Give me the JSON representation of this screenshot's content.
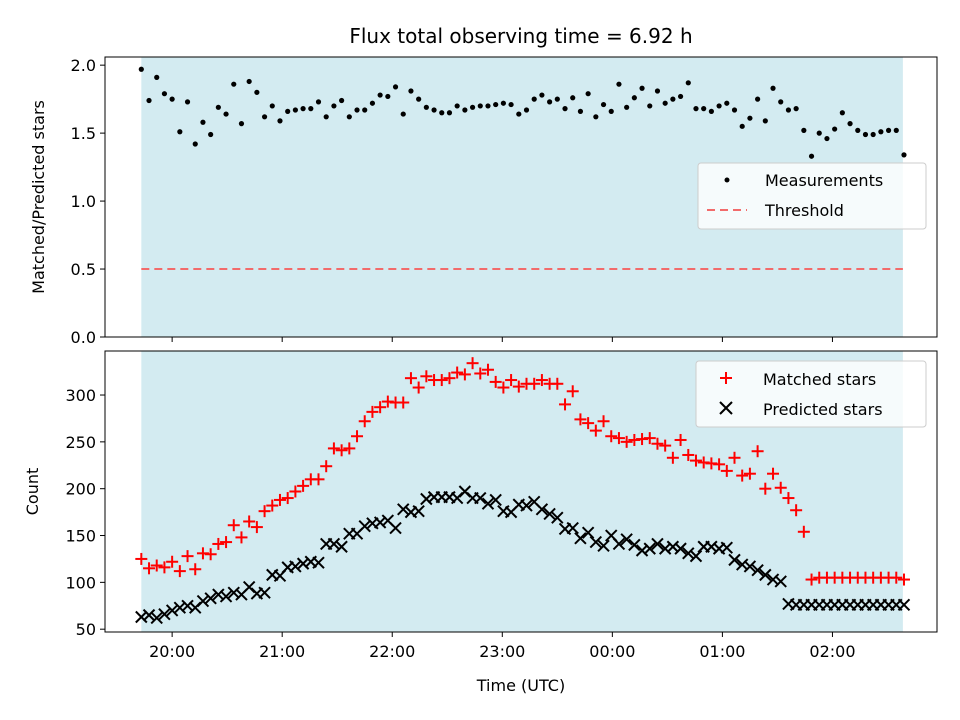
{
  "chart_data": {
    "title": "Flux total observing time = 6.92 h",
    "xlabel": "Time (UTC)",
    "x_unit": "hours (UTC clock; values after 24:00 continue past midnight)",
    "x_range": [
      19.39,
      26.95
    ],
    "shaded_interval": [
      19.72,
      26.64
    ],
    "shade_color": "#d3ebf1",
    "xticks": [
      {
        "value": 20,
        "label": "20:00"
      },
      {
        "value": 21,
        "label": "21:00"
      },
      {
        "value": 22,
        "label": "22:00"
      },
      {
        "value": 23,
        "label": "23:00"
      },
      {
        "value": 24,
        "label": "00:00"
      },
      {
        "value": 25,
        "label": "01:00"
      },
      {
        "value": 26,
        "label": "02:00"
      }
    ],
    "panels": [
      {
        "type": "scatter",
        "ylabel": "Matched/Predicted stars",
        "ylim": [
          0,
          2.06
        ],
        "yticks": [
          {
            "value": 0.0,
            "label": "0.0"
          },
          {
            "value": 0.5,
            "label": "0.5"
          },
          {
            "value": 1.0,
            "label": "1.0"
          },
          {
            "value": 1.5,
            "label": "1.5"
          },
          {
            "value": 2.0,
            "label": "2.0"
          }
        ],
        "legend_placement": "center-right",
        "threshold": {
          "name": "Threshold",
          "value": 0.5,
          "x_start": 19.72,
          "x_end": 26.64,
          "color": "#f26b6b"
        },
        "series": [
          {
            "name": "Measurements",
            "marker": "dot",
            "color": "#000000",
            "x": [
              19.72,
              19.79,
              19.86,
              19.93,
              20.0,
              20.07,
              20.14,
              20.21,
              20.28,
              20.35,
              20.42,
              20.49,
              20.56,
              20.63,
              20.7,
              20.77,
              20.84,
              20.91,
              20.98,
              21.05,
              21.12,
              21.19,
              21.26,
              21.33,
              21.4,
              21.47,
              21.54,
              21.61,
              21.68,
              21.75,
              21.82,
              21.89,
              21.96,
              22.03,
              22.1,
              22.17,
              22.24,
              22.31,
              22.38,
              22.45,
              22.52,
              22.59,
              22.66,
              22.73,
              22.8,
              22.87,
              22.94,
              23.01,
              23.08,
              23.15,
              23.22,
              23.29,
              23.36,
              23.43,
              23.5,
              23.57,
              23.64,
              23.71,
              23.78,
              23.85,
              23.92,
              23.99,
              24.06,
              24.13,
              24.2,
              24.27,
              24.34,
              24.41,
              24.48,
              24.55,
              24.62,
              24.69,
              24.76,
              24.83,
              24.9,
              24.97,
              25.04,
              25.11,
              25.18,
              25.25,
              25.32,
              25.39,
              25.46,
              25.53,
              25.6,
              25.67,
              25.74,
              25.81,
              25.88,
              25.95,
              26.02,
              26.09,
              26.16,
              26.23,
              26.3,
              26.37,
              26.44,
              26.51,
              26.58,
              26.65
            ],
            "y": [
              1.97,
              1.74,
              1.91,
              1.79,
              1.75,
              1.51,
              1.73,
              1.42,
              1.58,
              1.49,
              1.69,
              1.64,
              1.86,
              1.57,
              1.88,
              1.8,
              1.62,
              1.7,
              1.59,
              1.66,
              1.67,
              1.68,
              1.68,
              1.73,
              1.62,
              1.7,
              1.74,
              1.62,
              1.67,
              1.67,
              1.72,
              1.78,
              1.77,
              1.84,
              1.64,
              1.81,
              1.75,
              1.69,
              1.67,
              1.65,
              1.65,
              1.7,
              1.67,
              1.69,
              1.7,
              1.7,
              1.71,
              1.72,
              1.71,
              1.64,
              1.67,
              1.75,
              1.78,
              1.73,
              1.75,
              1.68,
              1.76,
              1.66,
              1.79,
              1.62,
              1.71,
              1.66,
              1.86,
              1.69,
              1.76,
              1.83,
              1.7,
              1.81,
              1.72,
              1.75,
              1.77,
              1.87,
              1.68,
              1.68,
              1.66,
              1.7,
              1.72,
              1.67,
              1.55,
              1.61,
              1.75,
              1.59,
              1.83,
              1.73,
              1.67,
              1.68,
              1.52,
              1.33,
              1.5,
              1.46,
              1.53,
              1.65,
              1.57,
              1.52,
              1.49,
              1.49,
              1.51,
              1.52,
              1.52,
              1.34
            ]
          }
        ]
      },
      {
        "type": "scatter",
        "ylabel": "Count",
        "ylim": [
          47,
          347
        ],
        "yticks": [
          {
            "value": 50,
            "label": "50"
          },
          {
            "value": 100,
            "label": "100"
          },
          {
            "value": 150,
            "label": "150"
          },
          {
            "value": 200,
            "label": "200"
          },
          {
            "value": 250,
            "label": "250"
          },
          {
            "value": 300,
            "label": "300"
          }
        ],
        "legend_placement": "top-right",
        "series": [
          {
            "name": "Matched stars",
            "marker": "plus",
            "color": "#ff0000",
            "x": [
              19.72,
              19.79,
              19.86,
              19.93,
              20.0,
              20.07,
              20.14,
              20.21,
              20.28,
              20.35,
              20.42,
              20.49,
              20.56,
              20.63,
              20.7,
              20.77,
              20.84,
              20.91,
              20.98,
              21.05,
              21.12,
              21.19,
              21.26,
              21.33,
              21.4,
              21.47,
              21.54,
              21.61,
              21.68,
              21.75,
              21.82,
              21.89,
              21.96,
              22.03,
              22.1,
              22.17,
              22.24,
              22.31,
              22.38,
              22.45,
              22.52,
              22.59,
              22.66,
              22.73,
              22.8,
              22.87,
              22.94,
              23.01,
              23.08,
              23.15,
              23.22,
              23.29,
              23.36,
              23.43,
              23.5,
              23.57,
              23.64,
              23.71,
              23.78,
              23.85,
              23.92,
              23.99,
              24.06,
              24.13,
              24.2,
              24.27,
              24.34,
              24.41,
              24.48,
              24.55,
              24.62,
              24.69,
              24.76,
              24.83,
              24.9,
              24.97,
              25.04,
              25.11,
              25.18,
              25.25,
              25.32,
              25.39,
              25.46,
              25.53,
              25.6,
              25.67,
              25.74,
              25.81,
              25.88,
              25.95,
              26.02,
              26.09,
              26.16,
              26.23,
              26.3,
              26.37,
              26.44,
              26.51,
              26.58,
              26.65
            ],
            "y": [
              125,
              115,
              118,
              116,
              122,
              112,
              128,
              114,
              131,
              130,
              141,
              143,
              161,
              148,
              165,
              159,
              176,
              182,
              188,
              190,
              197,
              203,
              210,
              210,
              224,
              243,
              241,
              243,
              256,
              272,
              282,
              287,
              293,
              292,
              292,
              318,
              308,
              320,
              316,
              316,
              318,
              324,
              322,
              334,
              323,
              327,
              314,
              308,
              316,
              309,
              312,
              312,
              316,
              312,
              312,
              290,
              304,
              274,
              270,
              262,
              272,
              256,
              254,
              250,
              252,
              253,
              254,
              248,
              246,
              233,
              252,
              236,
              230,
              228,
              227,
              226,
              219,
              233,
              214,
              216,
              240,
              200,
              216,
              201,
              190,
              177,
              154,
              103,
              105,
              105,
              105,
              105,
              105,
              105,
              105,
              105,
              105,
              105,
              105,
              103
            ]
          },
          {
            "name": "Predicted stars",
            "marker": "x",
            "color": "#000000",
            "x": [
              19.72,
              19.79,
              19.86,
              19.93,
              20.0,
              20.07,
              20.14,
              20.21,
              20.28,
              20.35,
              20.42,
              20.49,
              20.56,
              20.63,
              20.7,
              20.77,
              20.84,
              20.91,
              20.98,
              21.05,
              21.12,
              21.19,
              21.26,
              21.33,
              21.4,
              21.47,
              21.54,
              21.61,
              21.68,
              21.75,
              21.82,
              21.89,
              21.96,
              22.03,
              22.1,
              22.17,
              22.24,
              22.31,
              22.38,
              22.45,
              22.52,
              22.59,
              22.66,
              22.73,
              22.8,
              22.87,
              22.94,
              23.01,
              23.08,
              23.15,
              23.22,
              23.29,
              23.36,
              23.43,
              23.5,
              23.57,
              23.64,
              23.71,
              23.78,
              23.85,
              23.92,
              23.99,
              24.06,
              24.13,
              24.2,
              24.27,
              24.34,
              24.41,
              24.48,
              24.55,
              24.62,
              24.69,
              24.76,
              24.83,
              24.9,
              24.97,
              25.04,
              25.11,
              25.18,
              25.25,
              25.32,
              25.39,
              25.46,
              25.53,
              25.6,
              25.67,
              25.74,
              25.81,
              25.88,
              25.95,
              26.02,
              26.09,
              26.16,
              26.23,
              26.3,
              26.37,
              26.44,
              26.51,
              26.58,
              26.65
            ],
            "y": [
              63,
              65,
              62,
              66,
              70,
              73,
              75,
              73,
              80,
              83,
              87,
              85,
              89,
              87,
              95,
              88,
              89,
              108,
              107,
              116,
              117,
              120,
              122,
              121,
              141,
              141,
              138,
              152,
              152,
              160,
              163,
              164,
              166,
              158,
              178,
              175,
              176,
              189,
              191,
              191,
              191,
              190,
              197,
              190,
              190,
              184,
              188,
              176,
              175,
              183,
              182,
              186,
              178,
              173,
              169,
              157,
              158,
              147,
              153,
              143,
              139,
              150,
              141,
              146,
              140,
              134,
              136,
              141,
              136,
              138,
              136,
              131,
              128,
              138,
              138,
              136,
              137,
              124,
              119,
              117,
              113,
              108,
              103,
              101,
              77,
              76,
              76,
              76,
              76,
              76,
              76,
              76,
              76,
              76,
              76,
              76,
              76,
              76,
              76,
              76
            ]
          }
        ]
      }
    ]
  }
}
